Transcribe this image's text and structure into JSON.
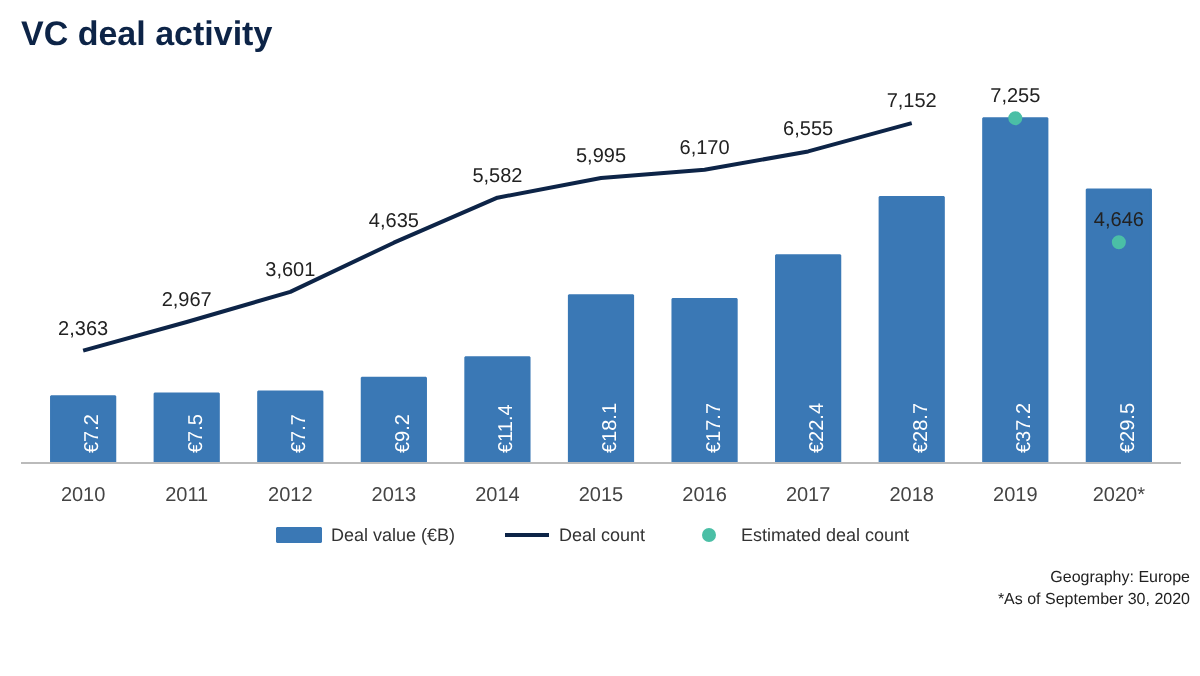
{
  "chart_data": {
    "type": "bar",
    "title": "VC deal activity",
    "categories": [
      "2010",
      "2011",
      "2012",
      "2013",
      "2014",
      "2015",
      "2016",
      "2017",
      "2018",
      "2019",
      "2020*"
    ],
    "series": [
      {
        "name": "Deal value (€B)",
        "color": "#3a78b5",
        "values": [
          7.2,
          7.5,
          7.7,
          9.2,
          11.4,
          18.1,
          17.7,
          22.4,
          28.7,
          37.2,
          29.5
        ],
        "value_labels": [
          "€7.2",
          "€7.5",
          "€7.7",
          "€9.2",
          "€11.4",
          "€18.1",
          "€17.7",
          "€22.4",
          "€28.7",
          "€37.2",
          "€29.5"
        ]
      },
      {
        "type": "line",
        "name": "Deal count",
        "color": "#0d2447",
        "axis": "y2",
        "values": [
          2363,
          2967,
          3601,
          4635,
          5582,
          5995,
          6170,
          6555,
          7152,
          null,
          null
        ],
        "value_labels": [
          "2,363",
          "2,967",
          "3,601",
          "4,635",
          "5,582",
          "5,995",
          "6,170",
          "6,555",
          "7,152",
          null,
          null
        ]
      },
      {
        "type": "scatter",
        "name": "Estimated deal count",
        "color": "#4bbfa6",
        "axis": "y2",
        "marker": "circle",
        "values": [
          null,
          null,
          null,
          null,
          null,
          null,
          null,
          null,
          null,
          7255,
          4646
        ],
        "value_labels": [
          null,
          null,
          null,
          null,
          null,
          null,
          null,
          null,
          null,
          "7,255",
          "4,646"
        ]
      }
    ],
    "tick_labels": "x",
    "grid": false,
    "legend": "bottom",
    "annotations": [
      "Geography: Europe",
      "*As of September 30, 2020"
    ]
  }
}
